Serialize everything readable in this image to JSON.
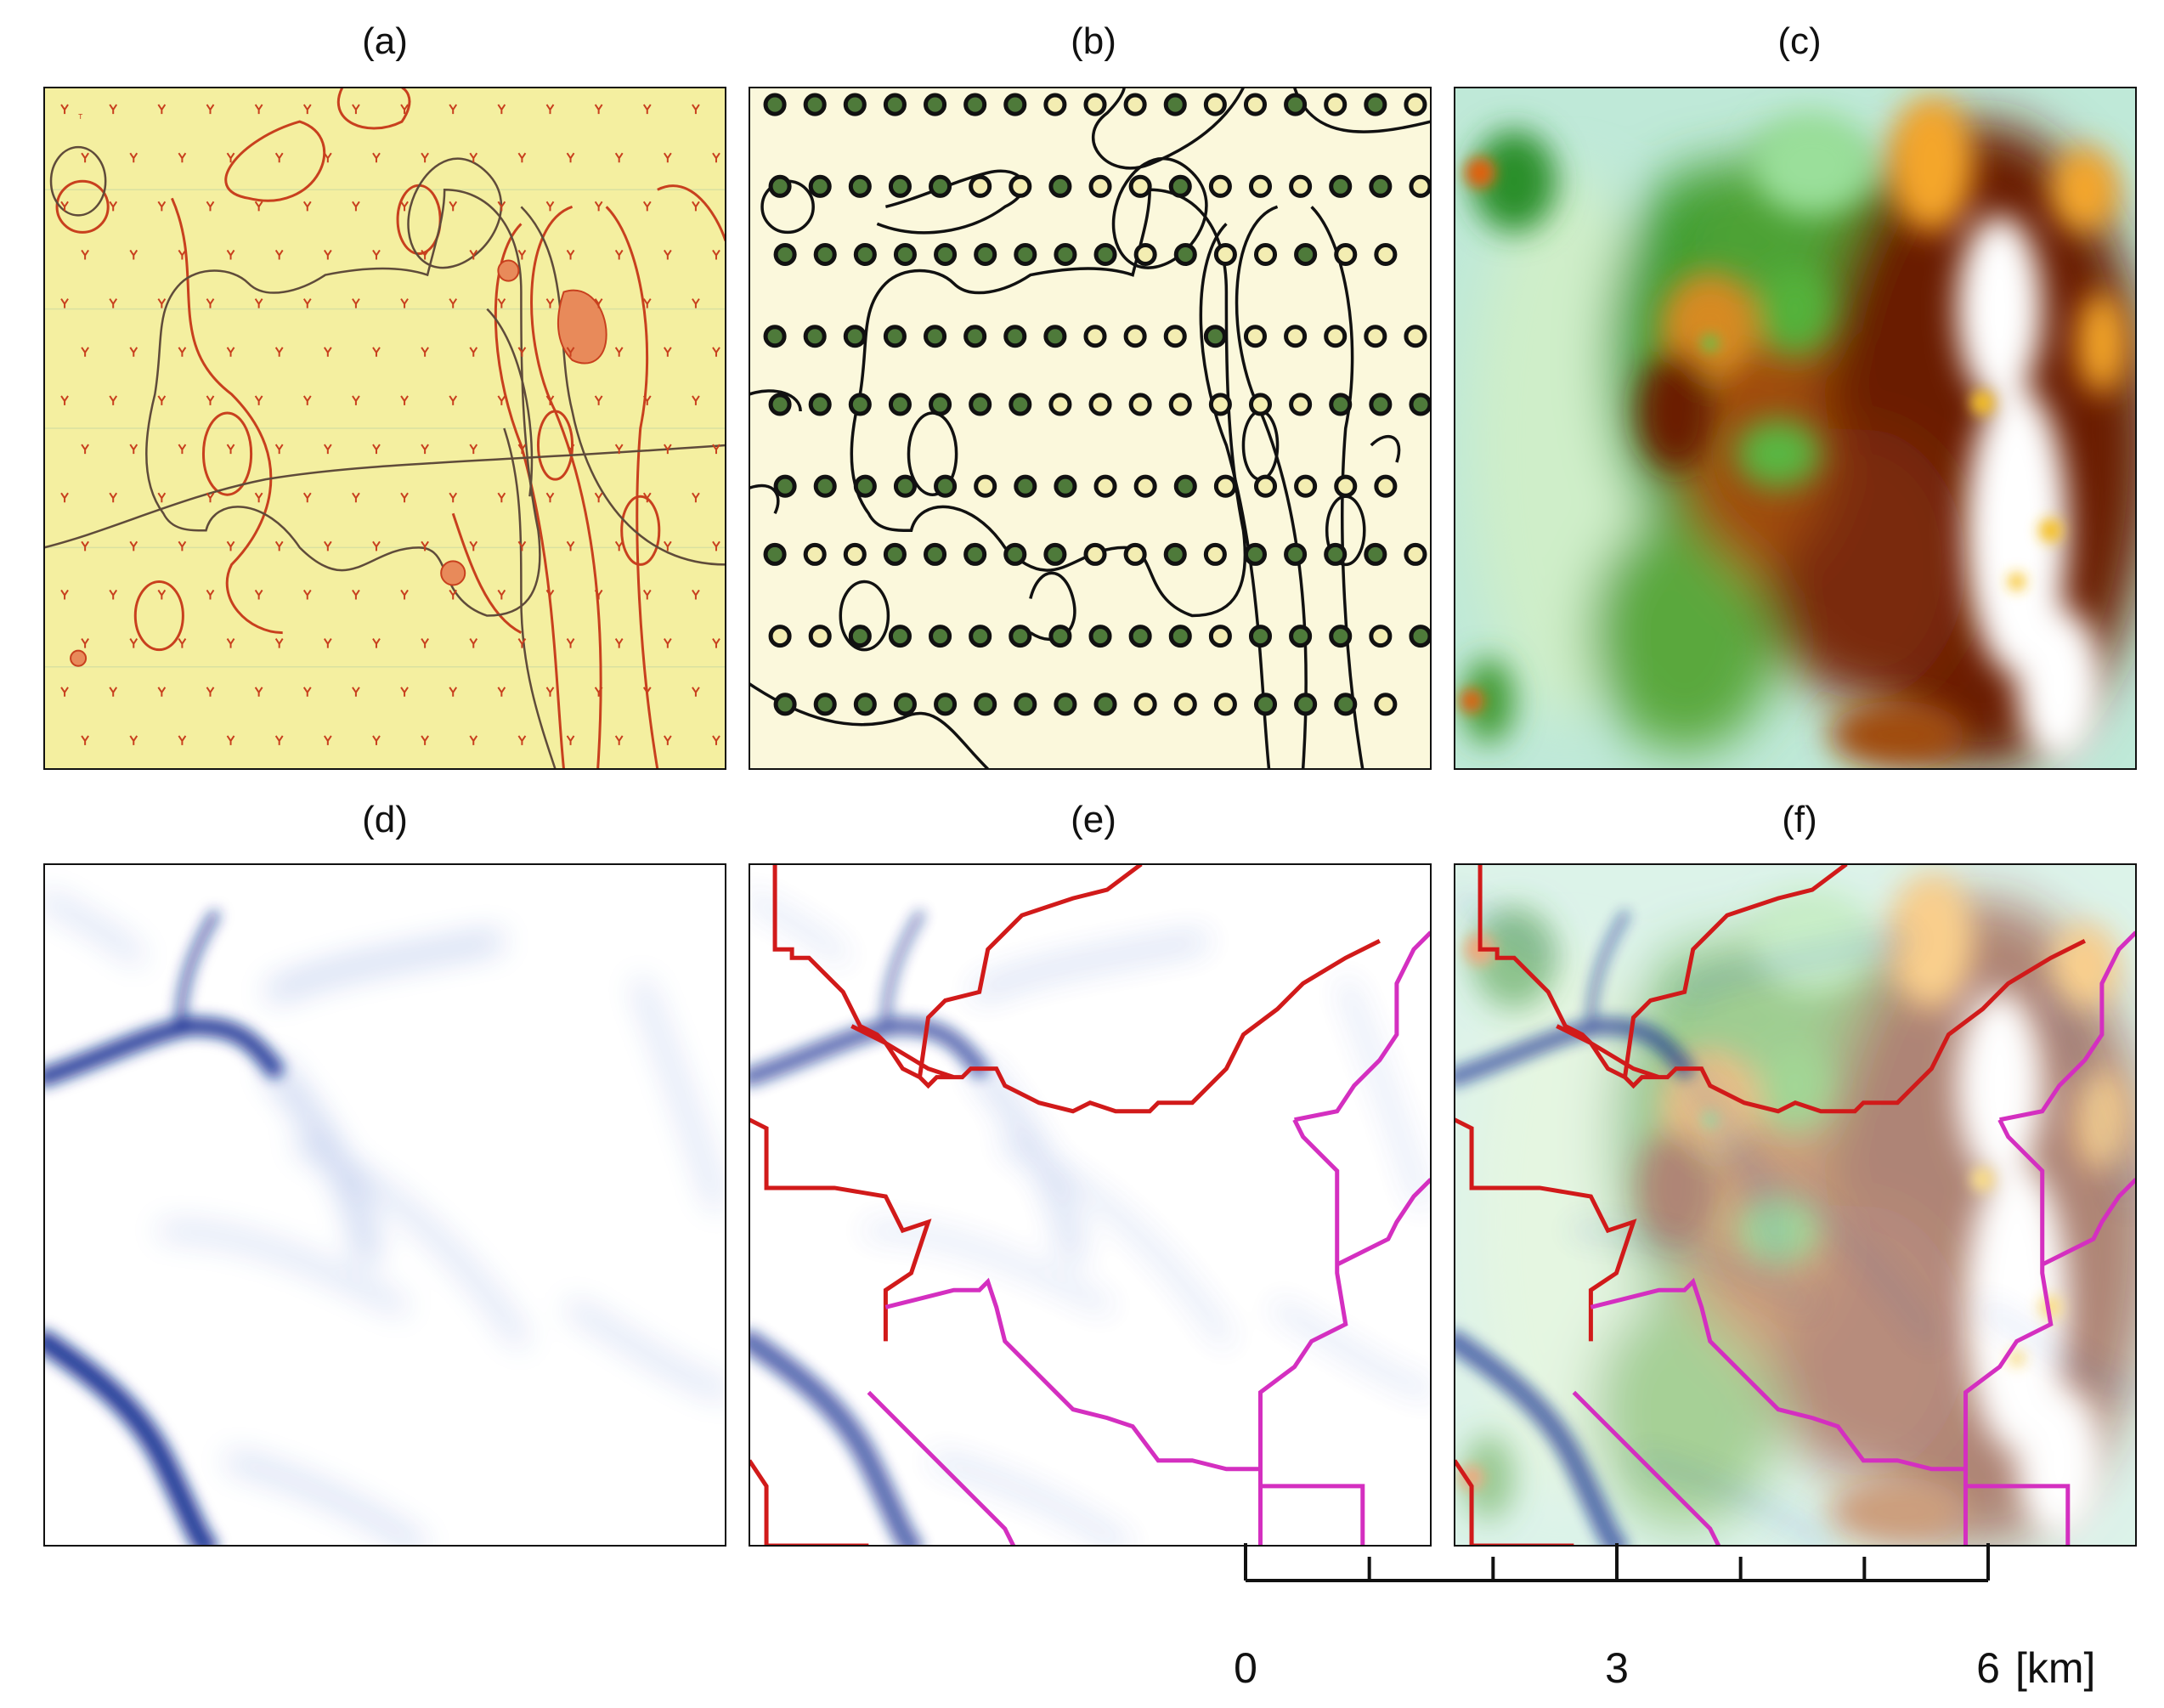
{
  "panels": [
    {
      "label": "(a)",
      "kind": "scanned-topographic-map"
    },
    {
      "label": "(b)",
      "kind": "sample-points-over-map"
    },
    {
      "label": "(c)",
      "kind": "interpolated-elevation-surface"
    },
    {
      "label": "(d)",
      "kind": "flow-accumulation"
    },
    {
      "label": "(e)",
      "kind": "flow-accumulation-with-watersheds"
    },
    {
      "label": "(f)",
      "kind": "elevation-with-flow-and-watersheds"
    }
  ],
  "scale_bar": {
    "tick_labels": [
      "0",
      "3",
      "6"
    ],
    "unit": "[km]",
    "max_km": 6,
    "major_ticks": [
      0,
      3,
      6
    ],
    "minor_ticks": [
      1,
      2,
      4,
      5
    ]
  },
  "colors": {
    "map_paper": "#f4efa0",
    "map_contour": "#c8401e",
    "point_dark": "#4e7a3a",
    "point_light": "#f3edb2",
    "flow": "#0b2a8f",
    "watershed_red": "#d11a1a",
    "watershed_magenta": "#d42fc0",
    "elev_low": "#bfe9d8",
    "elev_mid": "#2f9a2a",
    "elev_high": "#6b1e05",
    "elev_peak": "#ffffff"
  }
}
